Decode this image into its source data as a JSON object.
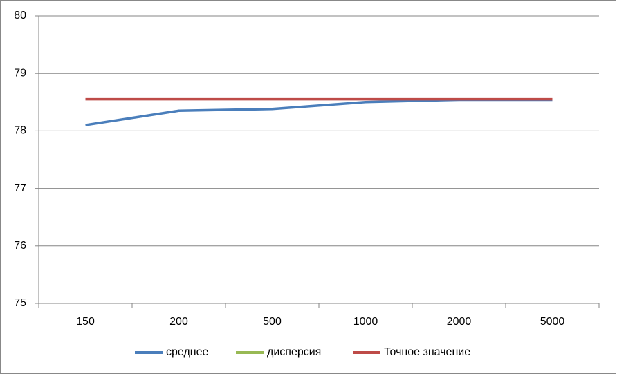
{
  "chart_data": {
    "type": "line",
    "categories": [
      "150",
      "200",
      "500",
      "1000",
      "2000",
      "5000"
    ],
    "series": [
      {
        "name": "среднее",
        "color": "#4a7ebb",
        "values": [
          78.1,
          78.35,
          78.38,
          78.5,
          78.54,
          78.54
        ]
      },
      {
        "name": "дисперсия",
        "color": "#98b954",
        "values": [
          null,
          null,
          null,
          null,
          null,
          null
        ]
      },
      {
        "name": "Точное значение",
        "color": "#be4b48",
        "values": [
          78.55,
          78.55,
          78.55,
          78.55,
          78.55,
          78.55
        ]
      }
    ],
    "ylim": [
      75,
      80
    ],
    "yticks": [
      75,
      76,
      77,
      78,
      79,
      80
    ],
    "grid": true,
    "legend": "bottom"
  }
}
